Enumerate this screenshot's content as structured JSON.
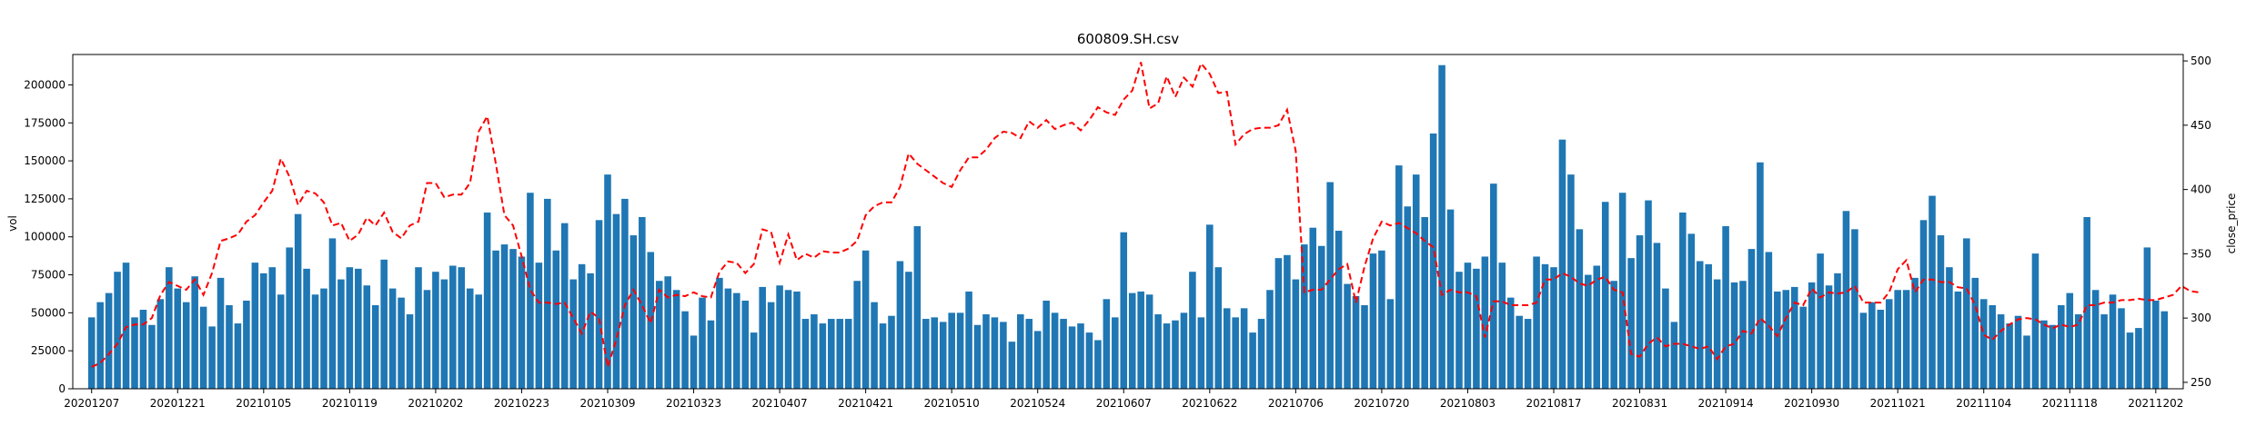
{
  "chart_data": {
    "title": "600809.SH.csv",
    "type": "bar+line",
    "xlabel": "",
    "left_ylabel": "vol",
    "right_ylabel": "close_price",
    "left_ylim": [
      0,
      220000
    ],
    "right_ylim": [
      245,
      505
    ],
    "left_yticks": [
      0,
      25000,
      50000,
      75000,
      100000,
      125000,
      150000,
      175000,
      200000
    ],
    "right_yticks": [
      250,
      300,
      350,
      400,
      450,
      500
    ],
    "x_tick_labels": [
      "20201207",
      "20201221",
      "20210105",
      "20210119",
      "20210202",
      "20210223",
      "20210309",
      "20210323",
      "20210407",
      "20210421",
      "20210510",
      "20210524",
      "20210607",
      "20210622",
      "20210706",
      "20210720",
      "20210803",
      "20210817",
      "20210831",
      "20210914",
      "20210930",
      "20211021",
      "20211104",
      "20211118",
      "20211202"
    ],
    "x_tick_positions": [
      0,
      10,
      20,
      30,
      40,
      50,
      60,
      70,
      80,
      90,
      100,
      110,
      120,
      130,
      140,
      150,
      160,
      170,
      180,
      190,
      200,
      210,
      220,
      230,
      240
    ],
    "grid": false,
    "bar_color": "#1f77b4",
    "line_color": "#ff0000",
    "line_style": "dashed",
    "series": [
      {
        "kind": "bar",
        "axis": "left",
        "values": [
          47000,
          57000,
          63000,
          77000,
          83000,
          47000,
          52000,
          42000,
          59000,
          80000,
          66000,
          57000,
          74000,
          54000,
          41000,
          73000,
          55000,
          43000,
          58000,
          83000,
          76000,
          80000,
          62000,
          93000,
          115000,
          79000,
          62000,
          66000,
          99000,
          72000,
          80000,
          79000,
          68000,
          55000,
          85000,
          66000,
          60000,
          49000,
          80000,
          65000,
          77000,
          72000,
          81000,
          80000,
          66000,
          62000,
          116000,
          91000,
          95000,
          92000,
          87000,
          129000,
          83000,
          125000,
          91000,
          109000,
          72000,
          82000,
          76000,
          111000,
          141000,
          115000,
          125000,
          101000,
          113000,
          90000,
          71000,
          74000,
          65000,
          51000,
          35000,
          60000,
          45000,
          73000,
          66000,
          63000,
          58000,
          37000,
          67000,
          57000,
          68000,
          65000,
          64000,
          46000,
          49000,
          43000,
          46000,
          46000,
          46000,
          71000,
          91000,
          57000,
          43000,
          48000,
          84000,
          77000,
          107000,
          46000,
          47000,
          44000,
          50000,
          50000,
          64000,
          42000,
          49000,
          47000,
          44000,
          31000,
          49000,
          46000,
          38000,
          58000,
          50000,
          46000,
          41000,
          43000,
          37000,
          32000,
          59000,
          47000,
          103000,
          63000,
          64000,
          62000,
          49000,
          43000,
          45000,
          50000,
          77000,
          47000,
          108000,
          80000,
          53000,
          47000,
          53000,
          37000,
          46000,
          65000,
          86000,
          88000,
          72000,
          95000,
          106000,
          94000,
          136000,
          104000,
          69000,
          61000,
          55000,
          89000,
          91000,
          59000,
          147000,
          120000,
          141000,
          113000,
          168000,
          213000,
          118000,
          77000,
          83000,
          79000,
          87000,
          135000,
          83000,
          60000,
          48000,
          46000,
          87000,
          82000,
          80000,
          164000,
          141000,
          105000,
          75000,
          81000,
          123000,
          71000,
          129000,
          86000,
          101000,
          124000,
          96000,
          66000,
          44000,
          116000,
          102000,
          84000,
          82000,
          72000,
          107000,
          70000,
          71000,
          92000,
          149000,
          90000,
          64000,
          65000,
          67000,
          54000,
          70000,
          89000,
          68000,
          76000,
          117000,
          105000,
          50000,
          57000,
          52000,
          59000,
          65000,
          65000,
          73000,
          111000,
          127000,
          101000,
          80000,
          64000,
          99000,
          73000,
          59000,
          55000,
          49000,
          43000,
          48000,
          35000,
          89000,
          45000,
          42000,
          55000,
          63000,
          49000,
          113000,
          65000,
          49000,
          62000,
          53000,
          37000,
          40000,
          93000,
          58000,
          51000
        ]
      },
      {
        "kind": "line",
        "axis": "right",
        "values": [
          262,
          265,
          272,
          280,
          293,
          295,
          295,
          300,
          318,
          328,
          325,
          322,
          330,
          318,
          335,
          360,
          362,
          365,
          375,
          380,
          390,
          399,
          424,
          410,
          388,
          399,
          397,
          390,
          372,
          374,
          360,
          365,
          378,
          372,
          382,
          367,
          362,
          372,
          375,
          405,
          405,
          394,
          396,
          396,
          405,
          445,
          457,
          420,
          380,
          372,
          348,
          322,
          312,
          312,
          311,
          312,
          300,
          288,
          305,
          300,
          262,
          283,
          310,
          322,
          310,
          296,
          322,
          316,
          318,
          317,
          320,
          317,
          316,
          336,
          344,
          343,
          335,
          342,
          369,
          367,
          343,
          365,
          345,
          350,
          347,
          352,
          351,
          351,
          354,
          360,
          380,
          387,
          390,
          390,
          402,
          428,
          420,
          415,
          410,
          405,
          402,
          415,
          425,
          425,
          431,
          440,
          445,
          444,
          440,
          453,
          448,
          454,
          447,
          450,
          452,
          446,
          454,
          464,
          460,
          458,
          470,
          477,
          499,
          463,
          467,
          488,
          472,
          487,
          480,
          498,
          490,
          475,
          476,
          435,
          443,
          447,
          448,
          448,
          450,
          462,
          430,
          320,
          322,
          322,
          330,
          338,
          342,
          312,
          340,
          362,
          375,
          372,
          374,
          370,
          366,
          360,
          355,
          318,
          322,
          320,
          320,
          317,
          285,
          313,
          313,
          310,
          310,
          310,
          312,
          330,
          330,
          335,
          332,
          327,
          325,
          330,
          332,
          322,
          320,
          272,
          270,
          280,
          285,
          278,
          280,
          280,
          278,
          276,
          278,
          268,
          278,
          280,
          290,
          288,
          300,
          294,
          286,
          300,
          312,
          310,
          323,
          316,
          320,
          319,
          320,
          325,
          312,
          312,
          312,
          320,
          338,
          345,
          320,
          330,
          330,
          328,
          328,
          324,
          323,
          310,
          287,
          283,
          290,
          295,
          299,
          300,
          299,
          295,
          292,
          295,
          293,
          295,
          310,
          310,
          312,
          312,
          314,
          314,
          315,
          314,
          314,
          316,
          318,
          325,
          321,
          320
        ]
      }
    ]
  }
}
